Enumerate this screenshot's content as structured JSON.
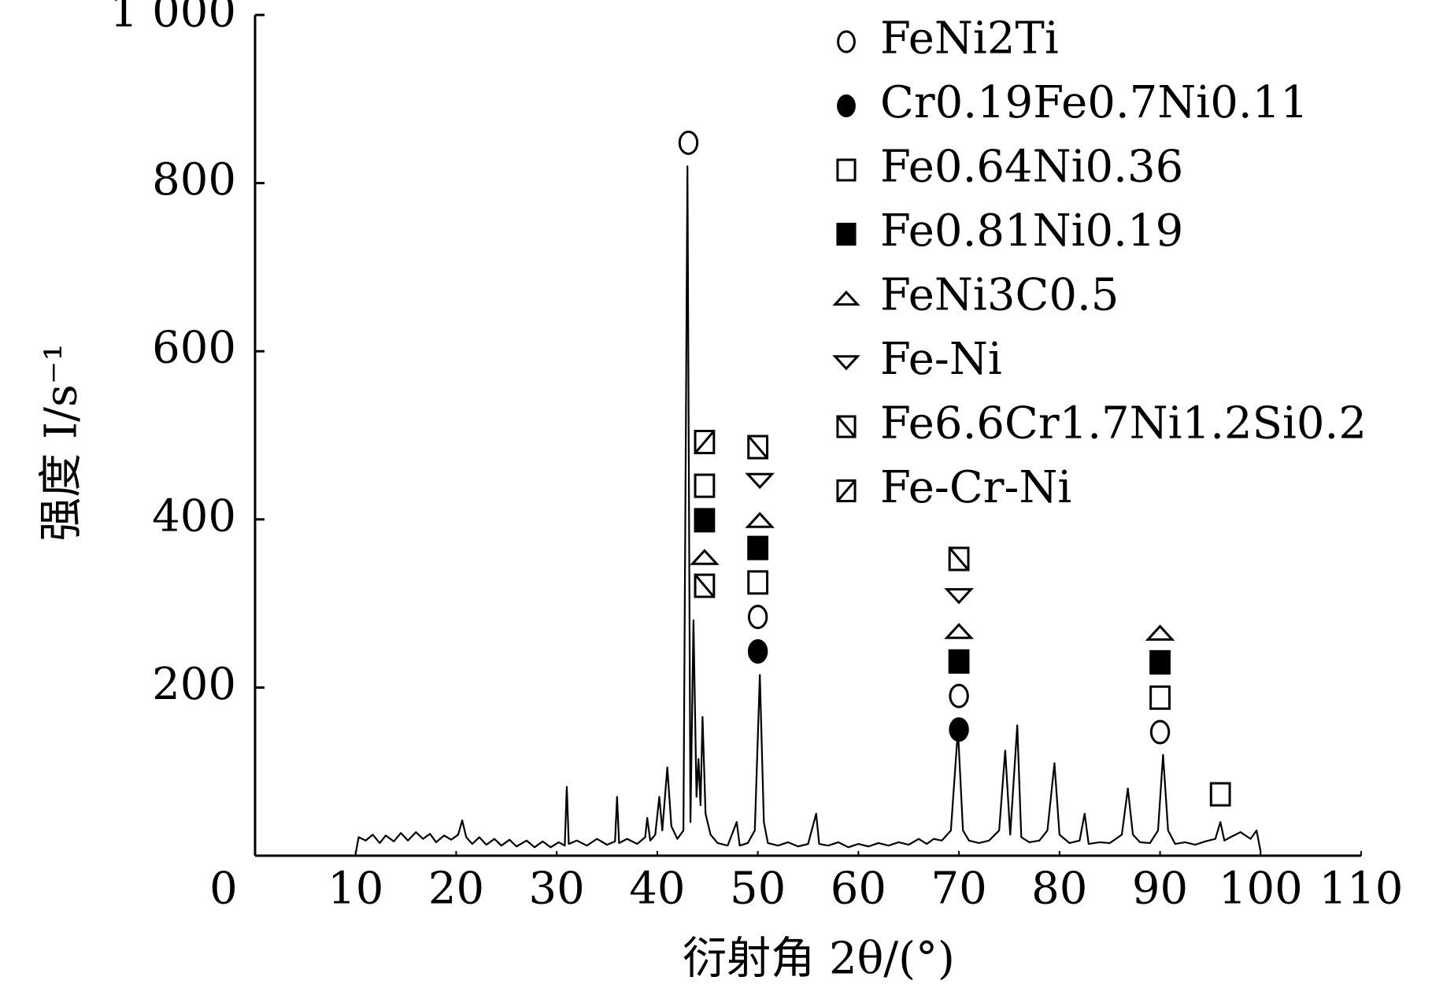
{
  "chart_data": {
    "type": "line",
    "xlabel": "衍射角 2θ/(°)",
    "ylabel": "强度 I/s⁻¹",
    "xlim": [
      0,
      110
    ],
    "ylim": [
      0,
      1000
    ],
    "xticks": [
      10,
      20,
      30,
      40,
      50,
      60,
      70,
      80,
      90,
      100,
      110
    ],
    "yticks": [
      0,
      200,
      400,
      600,
      800,
      {
        "value": 1000,
        "label": "1 000"
      }
    ],
    "color": "#000000",
    "legend": "upper right",
    "x": [
      10,
      10.3,
      11,
      11.7,
      12.4,
      13,
      13.8,
      14.5,
      15.2,
      16,
      16.7,
      17.4,
      18,
      18.8,
      19.5,
      20.2,
      20.6,
      21,
      21.6,
      22.3,
      23,
      23.8,
      24.5,
      25.3,
      26,
      27,
      27.8,
      28.6,
      29.4,
      30.2,
      30.8,
      31,
      31.2,
      32,
      33,
      34,
      35,
      35.8,
      36,
      36.2,
      37,
      38,
      38.8,
      39,
      39.3,
      39.8,
      40.2,
      40.5,
      41,
      41.4,
      42,
      42.6,
      43.0,
      43.3,
      43.6,
      43.9,
      44.1,
      44.3,
      44.5,
      44.8,
      45.3,
      46,
      47,
      47.9,
      48.2,
      49,
      49.7,
      50.2,
      50.6,
      51,
      52,
      53,
      54,
      55,
      55.8,
      56.1,
      57,
      58,
      59,
      60,
      61,
      62,
      63,
      64,
      65,
      66,
      66.8,
      67.5,
      68.3,
      69.2,
      69.9,
      70.4,
      71,
      72,
      73,
      74,
      74.6,
      75.1,
      75.8,
      76.2,
      77,
      78,
      78.8,
      79.5,
      80,
      81,
      82,
      82.5,
      82.9,
      84,
      85,
      86.2,
      86.8,
      87.3,
      88,
      89,
      89.8,
      90.3,
      90.8,
      91.5,
      92.5,
      93.5,
      94.5,
      95.5,
      96,
      96.4,
      97,
      98,
      99,
      99.6,
      100
    ],
    "values": [
      2,
      22,
      18,
      25,
      15,
      24,
      17,
      27,
      18,
      28,
      20,
      26,
      16,
      24,
      19,
      25,
      42,
      22,
      14,
      22,
      13,
      20,
      12,
      19,
      11,
      18,
      10,
      17,
      10,
      16,
      12,
      82,
      14,
      18,
      12,
      20,
      13,
      17,
      70,
      15,
      20,
      14,
      22,
      45,
      18,
      25,
      70,
      30,
      105,
      35,
      20,
      30,
      820,
      40,
      280,
      70,
      115,
      60,
      165,
      50,
      25,
      15,
      12,
      40,
      12,
      15,
      30,
      215,
      40,
      15,
      12,
      16,
      11,
      14,
      50,
      14,
      12,
      16,
      10,
      14,
      11,
      15,
      12,
      16,
      13,
      20,
      14,
      20,
      18,
      30,
      150,
      30,
      18,
      15,
      18,
      30,
      125,
      25,
      155,
      22,
      16,
      18,
      30,
      110,
      25,
      15,
      18,
      50,
      14,
      16,
      15,
      25,
      80,
      25,
      16,
      15,
      30,
      120,
      30,
      14,
      16,
      13,
      17,
      20,
      40,
      18,
      22,
      28,
      20,
      30,
      5
    ],
    "series": [
      {
        "name": "FeNi2Ti",
        "marker": "circle-open",
        "color": "#000000",
        "x": [
          43.1,
          50.0,
          70.0,
          90.0
        ],
        "values": [
          848,
          284,
          190,
          147
        ]
      },
      {
        "name": "Cr0.19Fe0.7Ni0.11",
        "marker": "circle-filled",
        "color": "#000000",
        "x": [
          50.0,
          70.0
        ],
        "values": [
          243,
          150
        ]
      },
      {
        "name": "Fe0.64Ni0.36",
        "marker": "square-open",
        "color": "#000000",
        "x": [
          44.7,
          50.0,
          90.0,
          96.0
        ],
        "values": [
          440,
          325,
          188,
          73
        ]
      },
      {
        "name": "Fe0.81Ni0.19",
        "marker": "square-filled",
        "color": "#000000",
        "x": [
          44.7,
          50.0,
          70.0,
          90.0
        ],
        "values": [
          399,
          366,
          231,
          230
        ]
      },
      {
        "name": "FeNi3C0.5",
        "marker": "triangle-up",
        "color": "#000000",
        "x": [
          44.7,
          50.2,
          70.0,
          90.0
        ],
        "values": [
          355,
          399,
          267,
          265
        ]
      },
      {
        "name": "Fe-Ni",
        "marker": "triangle-down",
        "color": "#000000",
        "x": [
          50.2,
          70.0
        ],
        "values": [
          446,
          309
        ]
      },
      {
        "name": "Fe6.6Cr1.7Ni1.2Si0.2",
        "marker": "square-backslash",
        "color": "#000000",
        "x": [
          44.7,
          50.0,
          70.0
        ],
        "values": [
          321,
          486,
          353
        ]
      },
      {
        "name": "Fe-Cr-Ni",
        "marker": "square-slash",
        "color": "#000000",
        "x": [
          44.7
        ],
        "values": [
          492
        ]
      }
    ]
  }
}
